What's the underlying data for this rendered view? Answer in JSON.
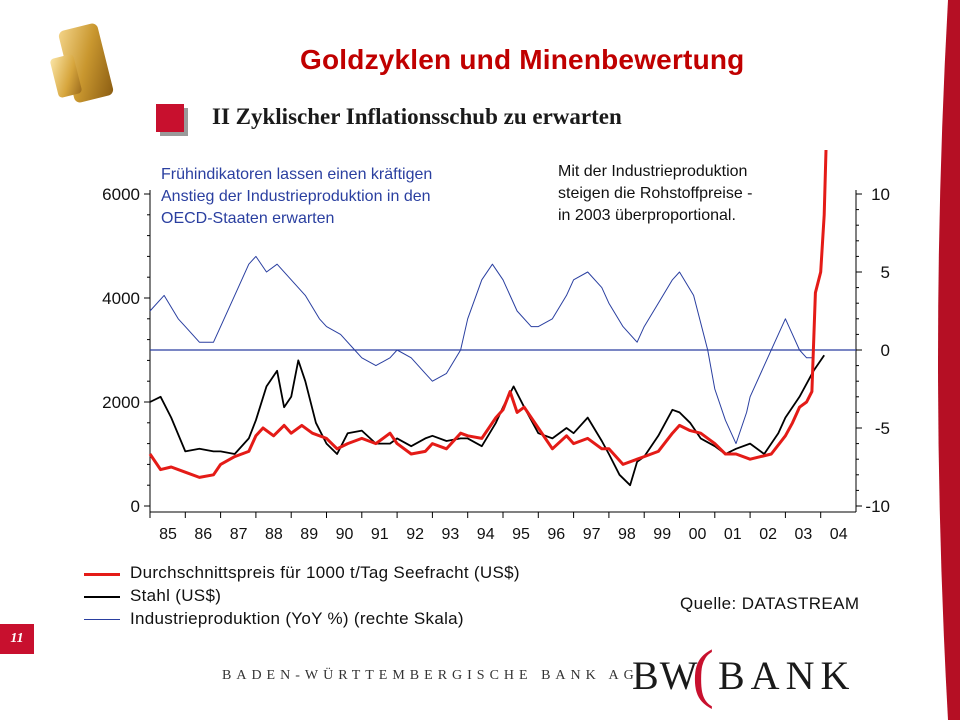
{
  "title": "Goldzyklen und Minenbewertung",
  "subtitle": "II Zyklischer Inflationsschub zu erwarten",
  "note_left": [
    "Frühindikatoren lassen einen kräftigen",
    "Anstieg der Industrieproduktion in den",
    "OECD-Staaten erwarten"
  ],
  "note_right": [
    "Mit der Industrieproduktion",
    "steigen die Rohstoffpreise -",
    "in 2003 überproportional."
  ],
  "page_number": "11",
  "source": "Quelle:  DATASTREAM",
  "bank_name": "BADEN-WÜRTTEMBERGISCHE BANK AG",
  "logo": {
    "left": "BW",
    "right": "BANK"
  },
  "colors": {
    "accent": "#c8102e",
    "title": "#c00000",
    "freight": "#e41b17",
    "steel": "#000000",
    "production": "#2a3fa0"
  },
  "chart_data": {
    "type": "line",
    "x": [
      "85",
      "86",
      "87",
      "88",
      "89",
      "90",
      "91",
      "92",
      "93",
      "94",
      "95",
      "96",
      "97",
      "98",
      "99",
      "00",
      "01",
      "02",
      "03",
      "04"
    ],
    "x_ticks": [
      "85",
      "86",
      "87",
      "88",
      "89",
      "90",
      "91",
      "92",
      "93",
      "94",
      "95",
      "96",
      "97",
      "98",
      "99",
      "00",
      "01",
      "02",
      "03",
      "04"
    ],
    "y_left": {
      "ticks": [
        "0",
        "2000",
        "4000",
        "6000"
      ],
      "lim": [
        0,
        6000
      ]
    },
    "y_right": {
      "ticks": [
        "10",
        "5",
        "0",
        "-5",
        "-10"
      ],
      "lim": [
        -10,
        10
      ]
    },
    "series": [
      {
        "name": "Durchschnittspreis für 1000 t/Tag Seefracht (US$)",
        "axis": "left",
        "color": "#e41b17",
        "points": [
          [
            85.0,
            1000
          ],
          [
            85.3,
            700
          ],
          [
            85.6,
            750
          ],
          [
            86.0,
            650
          ],
          [
            86.4,
            550
          ],
          [
            86.8,
            600
          ],
          [
            87.0,
            800
          ],
          [
            87.4,
            950
          ],
          [
            87.8,
            1050
          ],
          [
            88.0,
            1350
          ],
          [
            88.2,
            1500
          ],
          [
            88.5,
            1350
          ],
          [
            88.8,
            1550
          ],
          [
            89.0,
            1400
          ],
          [
            89.3,
            1550
          ],
          [
            89.6,
            1400
          ],
          [
            90.0,
            1300
          ],
          [
            90.3,
            1100
          ],
          [
            90.6,
            1200
          ],
          [
            91.0,
            1300
          ],
          [
            91.4,
            1200
          ],
          [
            91.8,
            1400
          ],
          [
            92.0,
            1200
          ],
          [
            92.4,
            1000
          ],
          [
            92.8,
            1050
          ],
          [
            93.0,
            1200
          ],
          [
            93.4,
            1100
          ],
          [
            93.8,
            1400
          ],
          [
            94.0,
            1350
          ],
          [
            94.4,
            1300
          ],
          [
            94.8,
            1700
          ],
          [
            95.0,
            1850
          ],
          [
            95.2,
            2200
          ],
          [
            95.4,
            1800
          ],
          [
            95.6,
            1900
          ],
          [
            96.0,
            1500
          ],
          [
            96.4,
            1100
          ],
          [
            96.8,
            1350
          ],
          [
            97.0,
            1200
          ],
          [
            97.4,
            1300
          ],
          [
            97.8,
            1100
          ],
          [
            98.0,
            1100
          ],
          [
            98.4,
            800
          ],
          [
            98.8,
            900
          ],
          [
            99.0,
            950
          ],
          [
            99.4,
            1050
          ],
          [
            99.8,
            1400
          ],
          [
            100.0,
            1550
          ],
          [
            100.3,
            1450
          ],
          [
            100.6,
            1400
          ],
          [
            101.0,
            1200
          ],
          [
            101.3,
            1000
          ],
          [
            101.6,
            1000
          ],
          [
            102.0,
            900
          ],
          [
            102.3,
            950
          ],
          [
            102.6,
            1000
          ],
          [
            103.0,
            1350
          ],
          [
            103.2,
            1600
          ],
          [
            103.4,
            1900
          ],
          [
            103.6,
            2000
          ],
          [
            103.75,
            2200
          ],
          [
            103.85,
            4100
          ],
          [
            104.0,
            4500
          ],
          [
            104.1,
            5600
          ],
          [
            104.15,
            7000
          ]
        ]
      },
      {
        "name": "Stahl (US$)",
        "axis": "left",
        "color": "#000000",
        "points": [
          [
            85.0,
            2000
          ],
          [
            85.3,
            2100
          ],
          [
            85.6,
            1700
          ],
          [
            86.0,
            1050
          ],
          [
            86.4,
            1100
          ],
          [
            86.8,
            1050
          ],
          [
            87.0,
            1050
          ],
          [
            87.4,
            1000
          ],
          [
            87.8,
            1300
          ],
          [
            88.0,
            1650
          ],
          [
            88.3,
            2300
          ],
          [
            88.6,
            2600
          ],
          [
            88.8,
            1900
          ],
          [
            89.0,
            2100
          ],
          [
            89.2,
            2800
          ],
          [
            89.4,
            2400
          ],
          [
            89.7,
            1600
          ],
          [
            90.0,
            1200
          ],
          [
            90.3,
            1000
          ],
          [
            90.6,
            1400
          ],
          [
            91.0,
            1450
          ],
          [
            91.4,
            1200
          ],
          [
            91.8,
            1200
          ],
          [
            92.0,
            1300
          ],
          [
            92.4,
            1150
          ],
          [
            92.8,
            1300
          ],
          [
            93.0,
            1350
          ],
          [
            93.4,
            1250
          ],
          [
            93.8,
            1300
          ],
          [
            94.0,
            1300
          ],
          [
            94.4,
            1150
          ],
          [
            94.8,
            1600
          ],
          [
            95.0,
            1900
          ],
          [
            95.3,
            2300
          ],
          [
            95.6,
            1900
          ],
          [
            96.0,
            1400
          ],
          [
            96.4,
            1300
          ],
          [
            96.8,
            1500
          ],
          [
            97.0,
            1400
          ],
          [
            97.4,
            1700
          ],
          [
            97.8,
            1250
          ],
          [
            98.0,
            1000
          ],
          [
            98.3,
            600
          ],
          [
            98.6,
            400
          ],
          [
            98.8,
            850
          ],
          [
            99.0,
            950
          ],
          [
            99.4,
            1350
          ],
          [
            99.8,
            1850
          ],
          [
            100.0,
            1800
          ],
          [
            100.3,
            1600
          ],
          [
            100.6,
            1300
          ],
          [
            101.0,
            1150
          ],
          [
            101.3,
            1000
          ],
          [
            101.6,
            1100
          ],
          [
            102.0,
            1200
          ],
          [
            102.4,
            1000
          ],
          [
            102.8,
            1400
          ],
          [
            103.0,
            1700
          ],
          [
            103.4,
            2100
          ],
          [
            103.8,
            2600
          ],
          [
            104.1,
            2900
          ]
        ]
      },
      {
        "name": "Industrieproduktion (YoY %) (rechte Skala)",
        "axis": "right",
        "color": "#2a3fa0",
        "points": [
          [
            85.0,
            2.5
          ],
          [
            85.4,
            3.5
          ],
          [
            85.8,
            2
          ],
          [
            86.0,
            1.5
          ],
          [
            86.4,
            0.5
          ],
          [
            86.8,
            0.5
          ],
          [
            87.0,
            1.5
          ],
          [
            87.4,
            3.5
          ],
          [
            87.8,
            5.5
          ],
          [
            88.0,
            6
          ],
          [
            88.3,
            5
          ],
          [
            88.6,
            5.5
          ],
          [
            89.0,
            4.5
          ],
          [
            89.4,
            3.5
          ],
          [
            89.8,
            2
          ],
          [
            90.0,
            1.5
          ],
          [
            90.4,
            1
          ],
          [
            90.8,
            0
          ],
          [
            91.0,
            -0.5
          ],
          [
            91.4,
            -1
          ],
          [
            91.8,
            -0.5
          ],
          [
            92.0,
            0
          ],
          [
            92.4,
            -0.5
          ],
          [
            92.8,
            -1.5
          ],
          [
            93.0,
            -2
          ],
          [
            93.4,
            -1.5
          ],
          [
            93.8,
            0
          ],
          [
            94.0,
            2
          ],
          [
            94.4,
            4.5
          ],
          [
            94.7,
            5.5
          ],
          [
            95.0,
            4.5
          ],
          [
            95.4,
            2.5
          ],
          [
            95.8,
            1.5
          ],
          [
            96.0,
            1.5
          ],
          [
            96.4,
            2
          ],
          [
            96.8,
            3.5
          ],
          [
            97.0,
            4.5
          ],
          [
            97.4,
            5
          ],
          [
            97.8,
            4
          ],
          [
            98.0,
            3
          ],
          [
            98.4,
            1.5
          ],
          [
            98.8,
            0.5
          ],
          [
            99.0,
            1.5
          ],
          [
            99.4,
            3
          ],
          [
            99.8,
            4.5
          ],
          [
            100.0,
            5
          ],
          [
            100.4,
            3.5
          ],
          [
            100.8,
            0
          ],
          [
            101.0,
            -2.5
          ],
          [
            101.3,
            -4.5
          ],
          [
            101.6,
            -6
          ],
          [
            101.9,
            -4
          ],
          [
            102.0,
            -3
          ],
          [
            102.4,
            -1
          ],
          [
            102.8,
            1
          ],
          [
            103.0,
            2
          ],
          [
            103.2,
            1
          ],
          [
            103.4,
            0
          ],
          [
            103.6,
            -0.5
          ],
          [
            103.8,
            -0.5
          ]
        ]
      }
    ],
    "hline_right": 0
  }
}
